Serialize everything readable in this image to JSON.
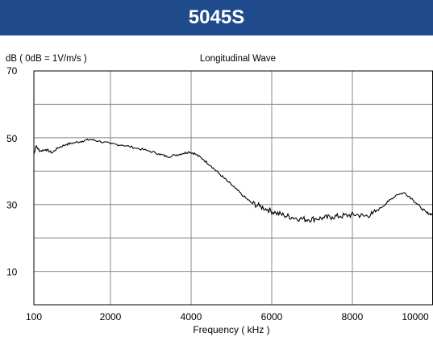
{
  "chart_data": {
    "type": "line",
    "title": "5045S",
    "subtitle": "Longitudinal Wave",
    "ylabel": "dB ( 0dB = 1V/m/s )",
    "xlabel": "Frequency ( kHz )",
    "xlim": [
      100,
      10000
    ],
    "ylim": [
      0,
      70
    ],
    "x_ticks": [
      {
        "value": 100,
        "label": "100"
      },
      {
        "value": 2000,
        "label": "2000"
      },
      {
        "value": 4000,
        "label": "4000"
      },
      {
        "value": 6000,
        "label": "6000"
      },
      {
        "value": 8000,
        "label": "8000"
      },
      {
        "value": 10000,
        "label": "10000"
      }
    ],
    "y_ticks": [
      {
        "value": 70,
        "label": "70"
      },
      {
        "value": 50,
        "label": "50"
      },
      {
        "value": 30,
        "label": "30"
      },
      {
        "value": 10,
        "label": "10"
      }
    ],
    "grid": true,
    "colors": {
      "title_bg": "#1f4b8c",
      "title_text": "#ffffff",
      "line": "#000000",
      "grid": "#888888"
    },
    "series": [
      {
        "x": [
          100,
          150,
          250,
          400,
          550,
          700,
          900,
          1100,
          1300,
          1500,
          1700,
          2000,
          2300,
          2600,
          2900,
          3200,
          3400,
          3600,
          3800,
          3950,
          4100,
          4300,
          4500,
          4700,
          4900,
          5100,
          5300,
          5500,
          5700,
          5900,
          6100,
          6300,
          6500,
          6700,
          6900,
          7100,
          7300,
          7500,
          7700,
          7900,
          8100,
          8300,
          8500,
          8700,
          8900,
          9100,
          9300,
          9500,
          9700,
          9850,
          10000
        ],
        "y": [
          45,
          47.5,
          46,
          46.5,
          45.5,
          47,
          48,
          48.5,
          49,
          49.5,
          49,
          48.2,
          47.8,
          47,
          46.2,
          45.2,
          44.3,
          44.8,
          45.3,
          45.8,
          45.2,
          43.5,
          41.5,
          39.2,
          37,
          34.8,
          32.5,
          30.5,
          29.5,
          28.5,
          27.5,
          26.8,
          26.2,
          25.8,
          25.5,
          25.8,
          26,
          26.3,
          26.5,
          26.8,
          27,
          26.5,
          27.2,
          29,
          31,
          33,
          33.5,
          31.5,
          29,
          27.5,
          27
        ]
      }
    ]
  }
}
